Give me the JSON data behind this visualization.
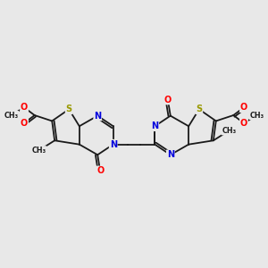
{
  "bg_color": "#e8e8e8",
  "bond_color": "#1a1a1a",
  "N_color": "#0000dd",
  "S_color": "#999900",
  "O_color": "#ff0000",
  "C_color": "#1a1a1a",
  "line_width": 1.3,
  "figsize": [
    3.0,
    3.0
  ],
  "dpi": 100,
  "xlim": [
    0,
    10
  ],
  "ylim": [
    2,
    8
  ]
}
